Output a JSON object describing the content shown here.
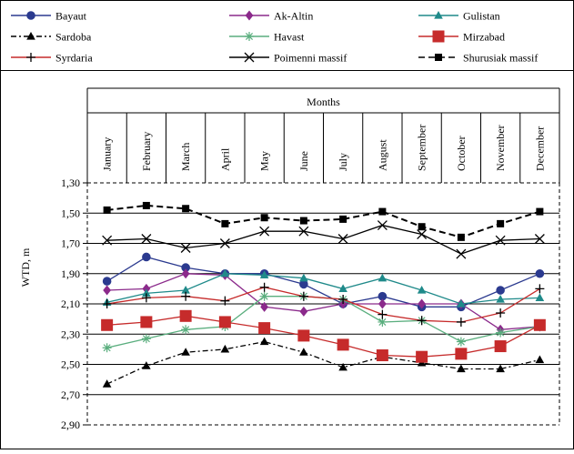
{
  "chart_data": {
    "type": "line",
    "title": "",
    "top_axis_label": "Months",
    "ylabel": "WTD, m",
    "y_reversed": true,
    "ylim": [
      1.3,
      2.9
    ],
    "yticks": [
      "1,30",
      "1,50",
      "1,70",
      "1,90",
      "2,10",
      "2,30",
      "2,50",
      "2,70",
      "2,90"
    ],
    "ytick_values": [
      1.3,
      1.5,
      1.7,
      1.9,
      2.1,
      2.3,
      2.5,
      2.7,
      2.9
    ],
    "grid": true,
    "legend_position": "top",
    "categories": [
      "January",
      "February",
      "March",
      "April",
      "May",
      "June",
      "July",
      "August",
      "September",
      "October",
      "November",
      "December"
    ],
    "series": [
      {
        "name": "Bayaut",
        "color": "#2b3a8f",
        "marker": "circle",
        "dash": "solid",
        "values": [
          1.95,
          1.79,
          1.86,
          1.9,
          1.9,
          1.97,
          2.1,
          2.05,
          2.12,
          2.12,
          2.01,
          1.9
        ]
      },
      {
        "name": "Ak-Altin",
        "color": "#8b2a8b",
        "marker": "diamond",
        "dash": "solid",
        "values": [
          2.01,
          2.0,
          1.9,
          1.91,
          2.12,
          2.15,
          2.1,
          2.1,
          2.1,
          2.1,
          2.27,
          2.25
        ]
      },
      {
        "name": "Gulistan",
        "color": "#1f8a8a",
        "marker": "triangle",
        "dash": "solid",
        "values": [
          2.09,
          2.03,
          2.01,
          1.9,
          1.91,
          1.93,
          2.0,
          1.93,
          2.01,
          2.1,
          2.07,
          2.06
        ]
      },
      {
        "name": "Sardoba",
        "color": "#000000",
        "marker": "triangle",
        "dash": "dashdot",
        "values": [
          2.63,
          2.51,
          2.42,
          2.4,
          2.35,
          2.42,
          2.52,
          2.45,
          2.49,
          2.53,
          2.53,
          2.47
        ]
      },
      {
        "name": "Havast",
        "color": "#5aae7e",
        "marker": "asterisk",
        "dash": "solid",
        "values": [
          2.39,
          2.33,
          2.27,
          2.25,
          2.05,
          2.05,
          2.07,
          2.22,
          2.21,
          2.35,
          2.29,
          2.25
        ]
      },
      {
        "name": "Mirzabad",
        "color": "#c62b2b",
        "marker": "square",
        "dash": "solid",
        "values": [
          2.24,
          2.22,
          2.18,
          2.22,
          2.26,
          2.31,
          2.37,
          2.44,
          2.45,
          2.43,
          2.38,
          2.24
        ]
      },
      {
        "name": "Syrdaria",
        "color": "#c62b2b",
        "marker": "plus",
        "dash": "solid",
        "values": [
          2.1,
          2.06,
          2.05,
          2.08,
          1.99,
          2.05,
          2.07,
          2.17,
          2.21,
          2.22,
          2.16,
          2.0
        ]
      },
      {
        "name": "Poimenni massif",
        "color": "#000000",
        "marker": "x",
        "dash": "solid",
        "values": [
          1.68,
          1.67,
          1.73,
          1.7,
          1.62,
          1.62,
          1.67,
          1.58,
          1.64,
          1.77,
          1.68,
          1.67
        ]
      },
      {
        "name": "Shurusiak massif",
        "color": "#000000",
        "marker": "square",
        "dash": "dashed",
        "values": [
          1.48,
          1.45,
          1.47,
          1.57,
          1.53,
          1.55,
          1.54,
          1.49,
          1.59,
          1.66,
          1.57,
          1.49
        ]
      }
    ]
  }
}
